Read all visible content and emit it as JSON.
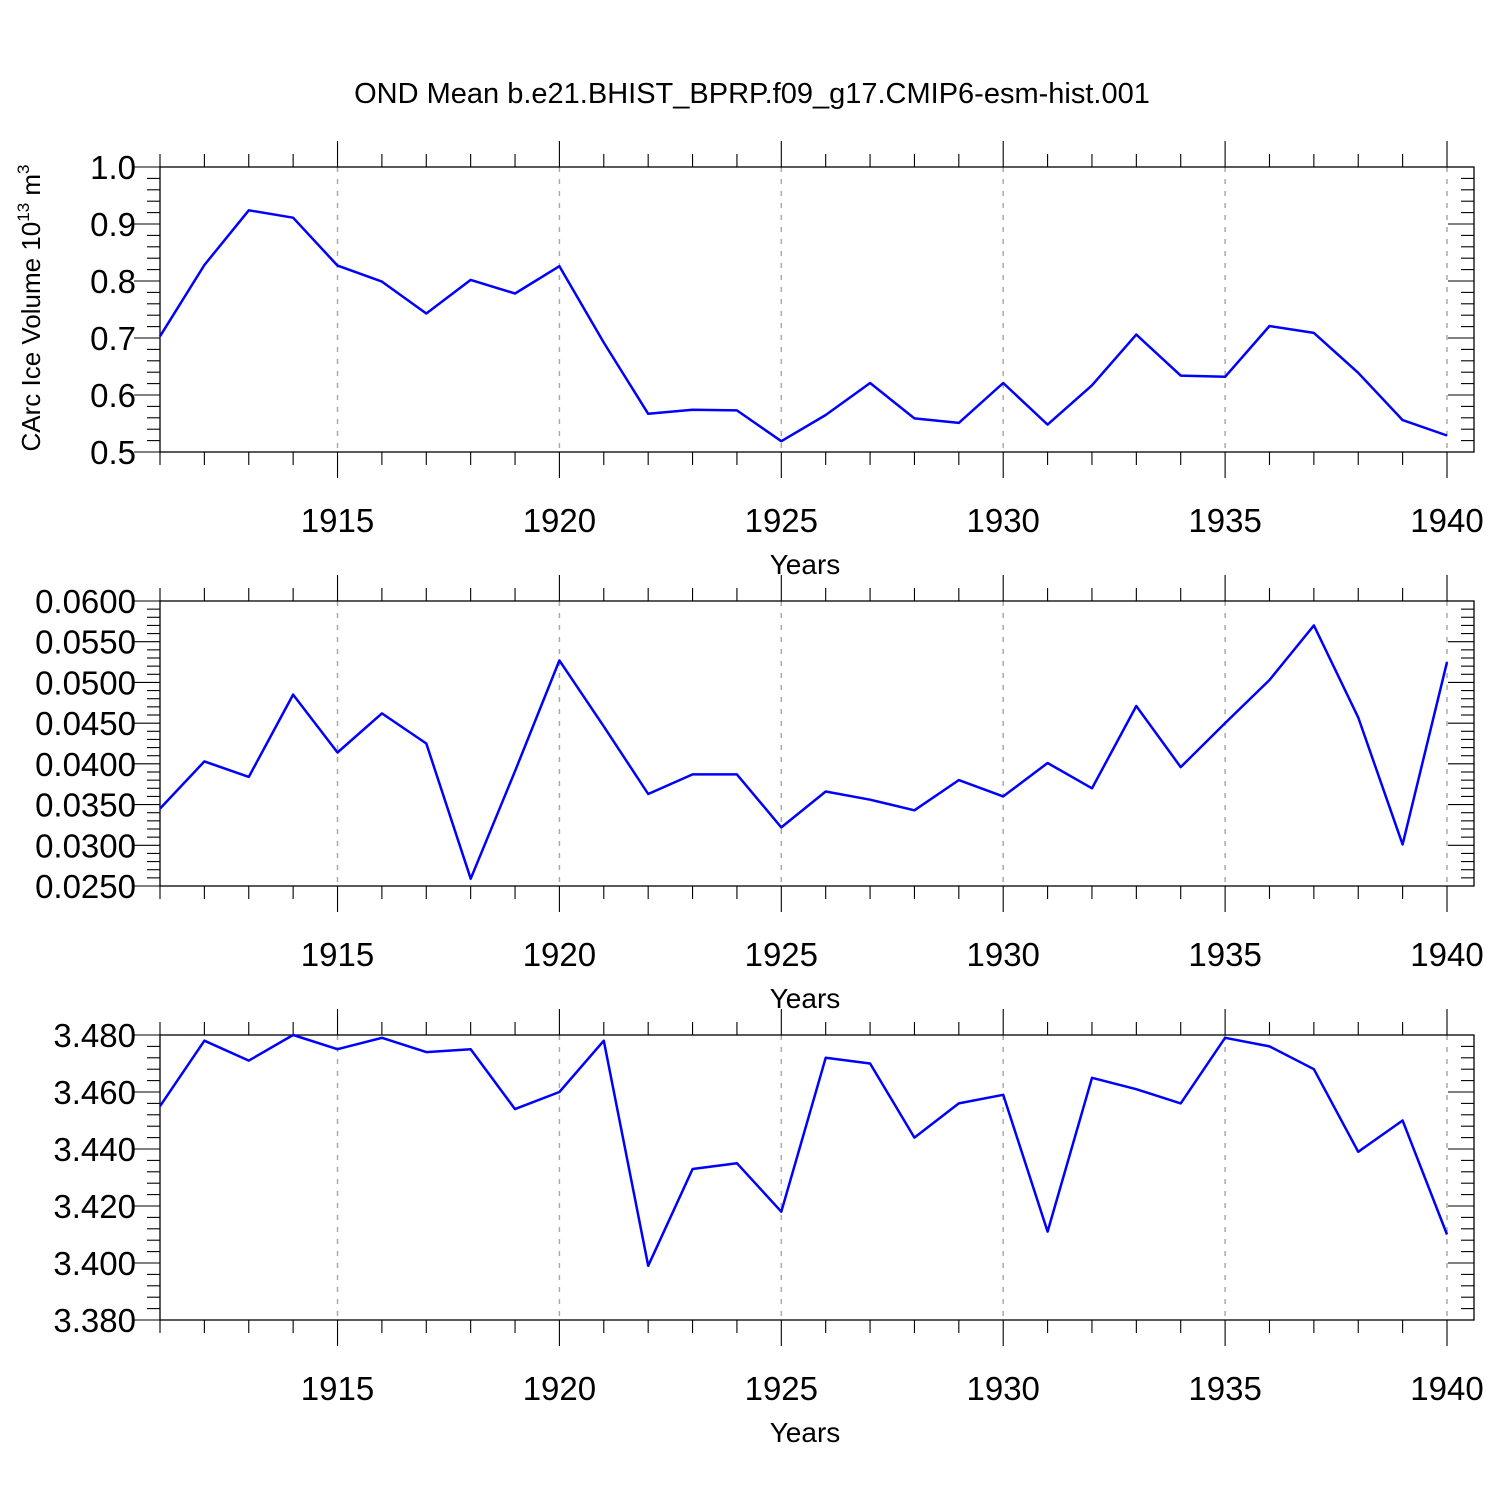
{
  "title": "OND Mean b.e21.BHIST_BPRP.f09_g17.CMIP6-esm-hist.001",
  "colors": {
    "series": "#0000ff",
    "grid": "#aaaaaa"
  },
  "chart_data": [
    {
      "type": "line",
      "title": "OND Mean b.e21.BHIST_BPRP.f09_g17.CMIP6-esm-hist.001",
      "xlabel": "Years",
      "ylabel": "CArc Ice Volume 10",
      "ylabel_sup": "13",
      "ylabel_unit": " m",
      "ylabel_unit_sup": "3",
      "x": [
        1911,
        1912,
        1913,
        1914,
        1915,
        1916,
        1917,
        1918,
        1919,
        1920,
        1921,
        1922,
        1923,
        1924,
        1925,
        1926,
        1927,
        1928,
        1929,
        1930,
        1931,
        1932,
        1933,
        1934,
        1935,
        1936,
        1937,
        1938,
        1939,
        1940
      ],
      "values": [
        0.703,
        0.828,
        0.924,
        0.911,
        0.827,
        0.799,
        0.743,
        0.802,
        0.778,
        0.826,
        0.692,
        0.567,
        0.574,
        0.573,
        0.519,
        0.565,
        0.621,
        0.559,
        0.551,
        0.621,
        0.548,
        0.617,
        0.706,
        0.634,
        0.632,
        0.721,
        0.709,
        0.639,
        0.556,
        0.529
      ],
      "xlim": [
        1911,
        1940
      ],
      "ylim": [
        0.5,
        1.0
      ],
      "xticks": [
        "1915",
        "1920",
        "1925",
        "1930",
        "1935",
        "1940"
      ],
      "yticks": [
        "0.5",
        "0.6",
        "0.7",
        "0.8",
        "0.9",
        "1.0"
      ]
    },
    {
      "type": "line",
      "xlabel": "Years",
      "ylabel": "",
      "x": [
        1911,
        1912,
        1913,
        1914,
        1915,
        1916,
        1917,
        1918,
        1919,
        1920,
        1921,
        1922,
        1923,
        1924,
        1925,
        1926,
        1927,
        1928,
        1929,
        1930,
        1931,
        1932,
        1933,
        1934,
        1935,
        1936,
        1937,
        1938,
        1939,
        1940
      ],
      "values": [
        0.0345,
        0.0403,
        0.0384,
        0.0485,
        0.0414,
        0.0462,
        0.0425,
        0.0259,
        0.0391,
        0.0527,
        0.0446,
        0.0363,
        0.0387,
        0.0387,
        0.0322,
        0.0366,
        0.0356,
        0.0343,
        0.038,
        0.036,
        0.0401,
        0.037,
        0.0471,
        0.0396,
        0.045,
        0.0503,
        0.057,
        0.0457,
        0.0301,
        0.0525
      ],
      "xlim": [
        1911,
        1940
      ],
      "ylim": [
        0.025,
        0.06
      ],
      "xticks": [
        "1915",
        "1920",
        "1925",
        "1930",
        "1935",
        "1940"
      ],
      "yticks": [
        "0.0250",
        "0.0300",
        "0.0350",
        "0.0400",
        "0.0450",
        "0.0500",
        "0.0550",
        "0.0600"
      ]
    },
    {
      "type": "line",
      "xlabel": "Years",
      "ylabel": "",
      "x": [
        1911,
        1912,
        1913,
        1914,
        1915,
        1916,
        1917,
        1918,
        1919,
        1920,
        1921,
        1922,
        1923,
        1924,
        1925,
        1926,
        1927,
        1928,
        1929,
        1930,
        1931,
        1932,
        1933,
        1934,
        1935,
        1936,
        1937,
        1938,
        1939,
        1940
      ],
      "values": [
        3.455,
        3.478,
        3.471,
        3.48,
        3.475,
        3.479,
        3.474,
        3.475,
        3.454,
        3.46,
        3.478,
        3.399,
        3.433,
        3.435,
        3.418,
        3.472,
        3.47,
        3.444,
        3.456,
        3.459,
        3.411,
        3.465,
        3.461,
        3.456,
        3.479,
        3.476,
        3.468,
        3.439,
        3.45,
        3.41
      ],
      "xlim": [
        1911,
        1940
      ],
      "ylim": [
        3.38,
        3.48
      ],
      "xticks": [
        "1915",
        "1920",
        "1925",
        "1930",
        "1935",
        "1940"
      ],
      "yticks": [
        "3.380",
        "3.400",
        "3.420",
        "3.440",
        "3.460",
        "3.480"
      ]
    }
  ]
}
